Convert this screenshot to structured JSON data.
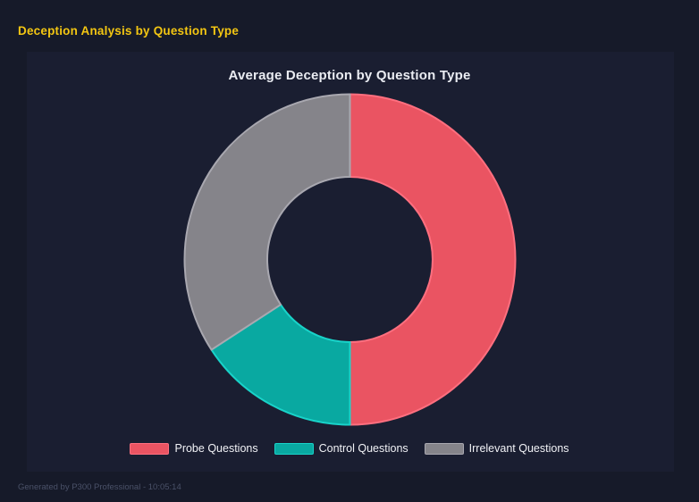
{
  "page": {
    "title": "Deception Analysis by Question Type",
    "footer": "Generated by P300 Professional - 10:05:14"
  },
  "theme": {
    "page_background": "#161a29",
    "panel_background": "#1a1e31",
    "heading_color": "#f3c612"
  },
  "chart_data": {
    "type": "pie",
    "subtype": "donut",
    "title": "Average Deception by Question Type",
    "labels": [
      "Probe Questions",
      "Control Questions",
      "Irrelevant Questions"
    ],
    "values_percent": [
      50,
      15.8,
      34.2
    ],
    "colors": [
      "#ea5462",
      "#09a9a1",
      "#85848a"
    ],
    "border_colors": [
      "#ff6f7f",
      "#19d3c9",
      "#a9a8b0"
    ],
    "legend_position": "bottom",
    "start_angle_deg": 0,
    "direction": "clockwise",
    "inner_radius_ratio": 0.5,
    "data_labels_shown": false
  }
}
